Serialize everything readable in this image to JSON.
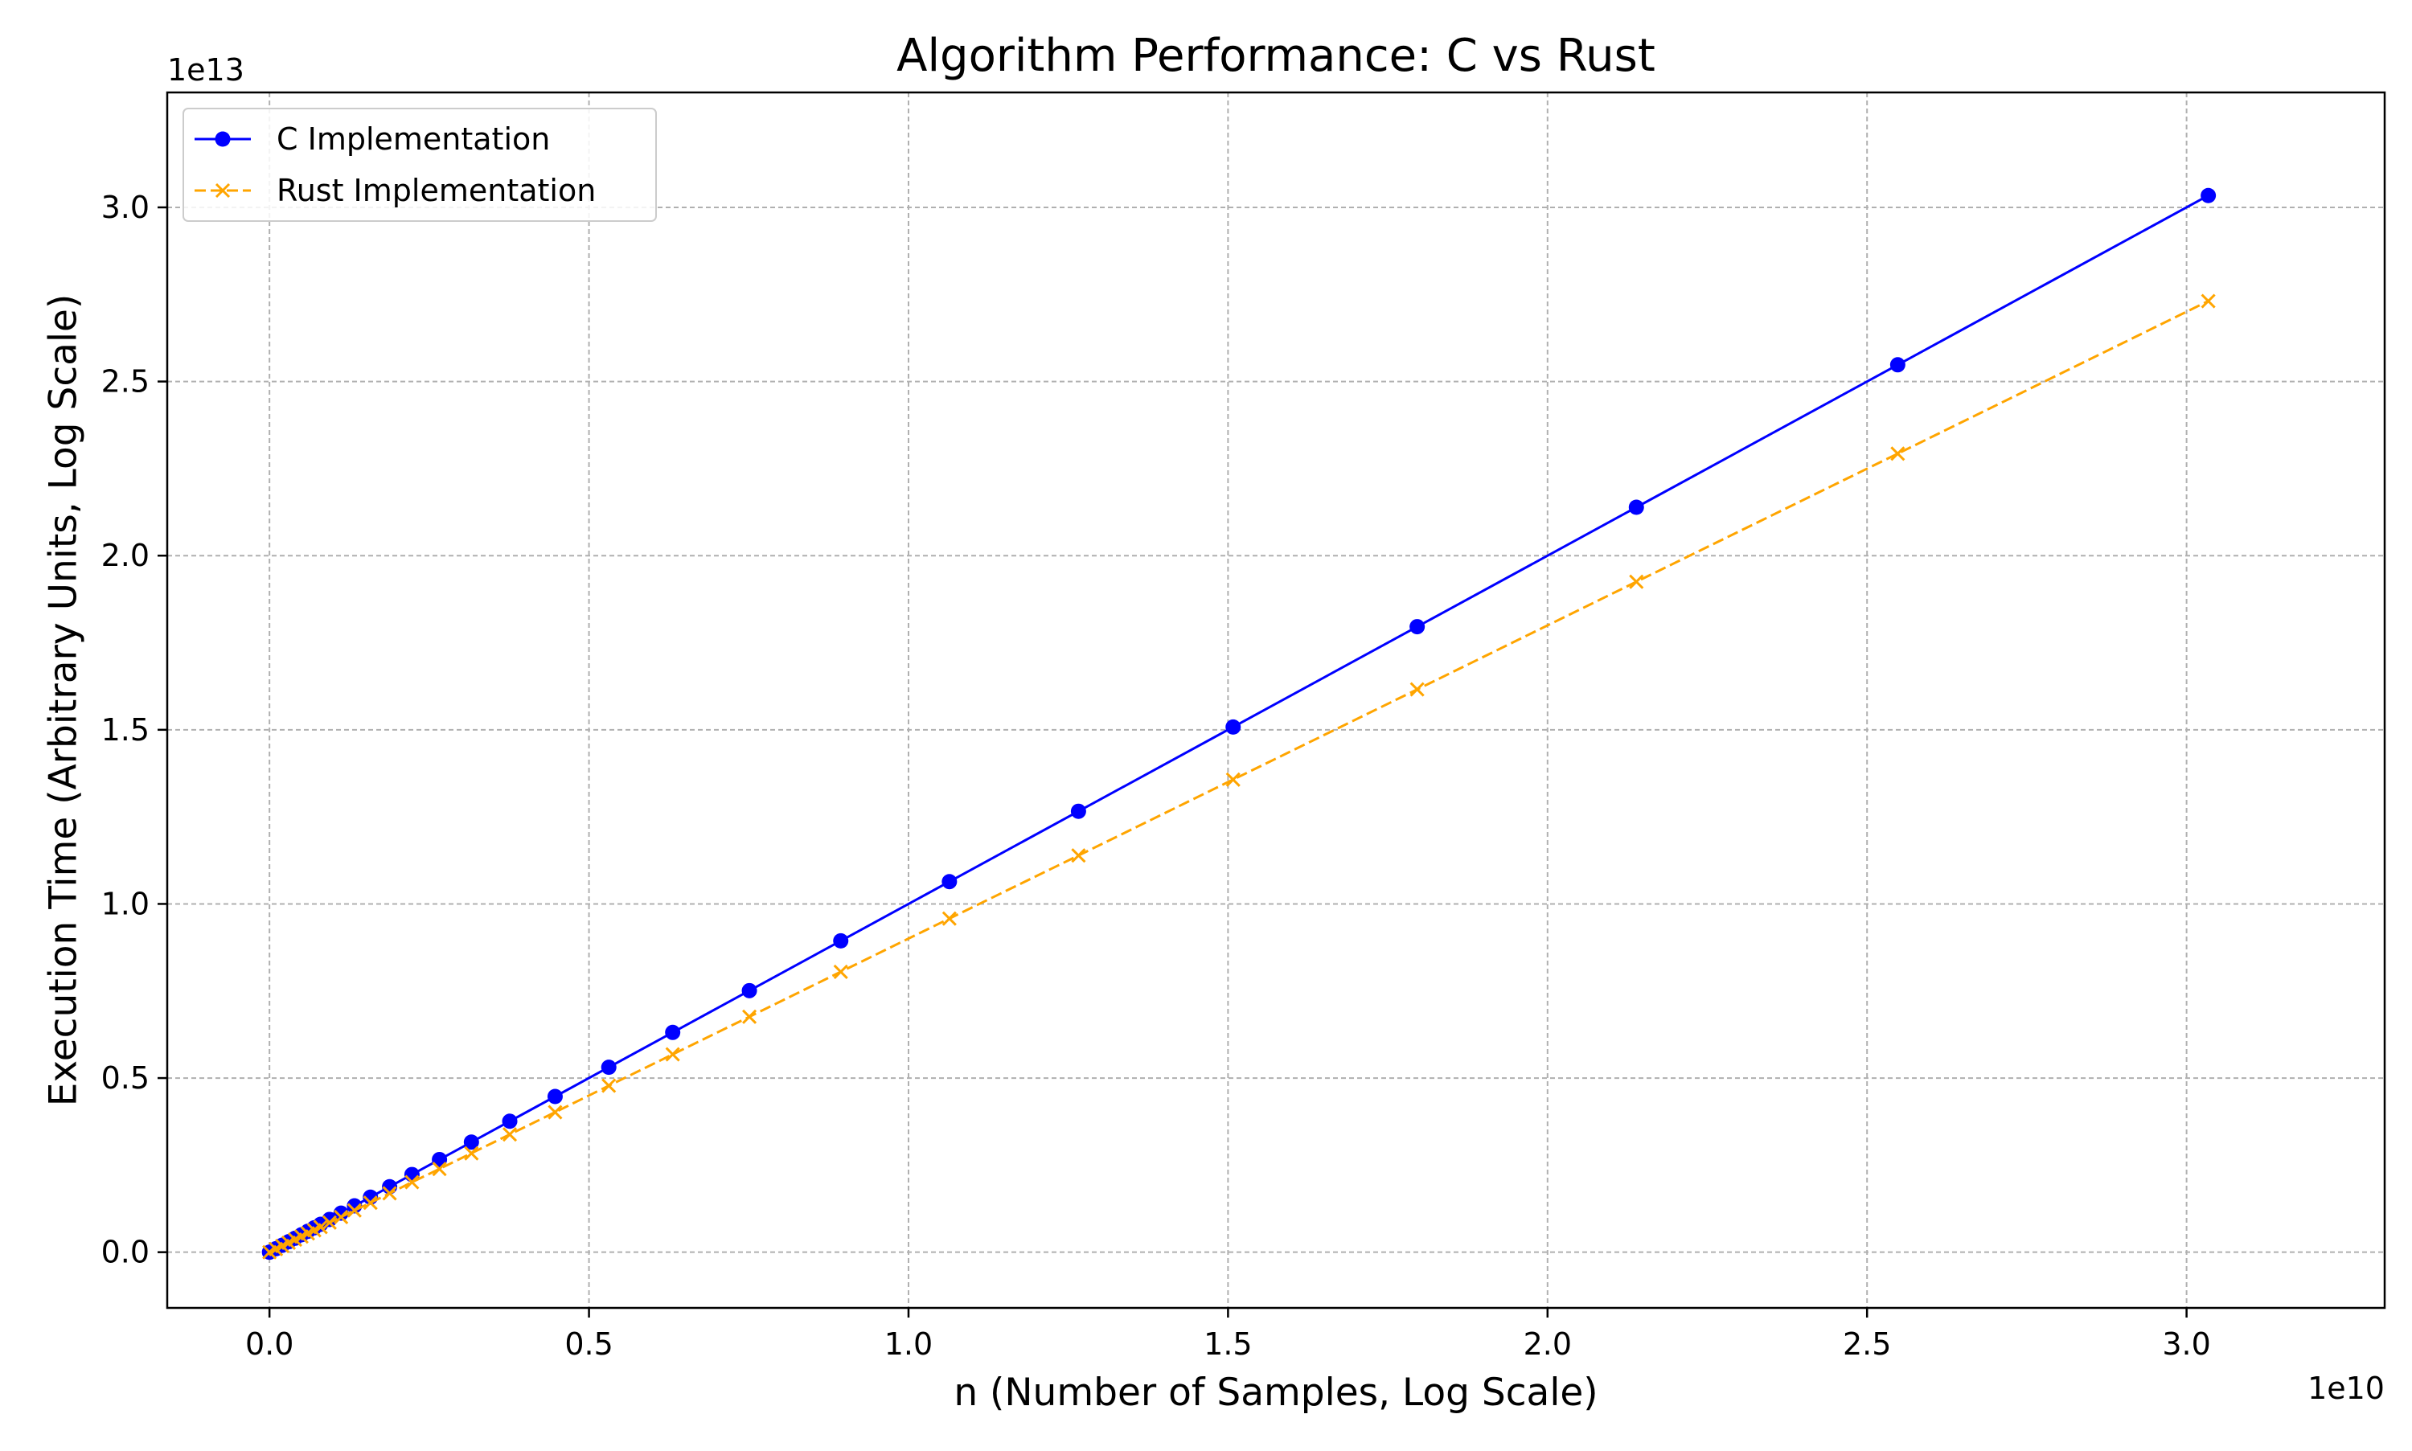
{
  "chart_data": {
    "type": "line",
    "title": "Algorithm Performance: C vs Rust",
    "xlabel": "n (Number of Samples, Log Scale)",
    "ylabel": "Execution Time (Arbitrary Units, Log Scale)",
    "x_offset_label": "1e10",
    "y_offset_label": "1e13",
    "xlim": [
      -0.16,
      3.31
    ],
    "ylim": [
      -0.16,
      3.33
    ],
    "x_ticks": [
      0.0,
      0.5,
      1.0,
      1.5,
      2.0,
      2.5,
      3.0
    ],
    "x_tick_labels": [
      "0.0",
      "0.5",
      "1.0",
      "1.5",
      "2.0",
      "2.5",
      "3.0"
    ],
    "y_ticks": [
      0.0,
      0.5,
      1.0,
      1.5,
      2.0,
      2.5,
      3.0
    ],
    "y_tick_labels": [
      "0.0",
      "0.5",
      "1.0",
      "1.5",
      "2.0",
      "2.5",
      "3.0"
    ],
    "grid": true,
    "legend_position": "top-left",
    "x": [
      0.0,
      0.01,
      0.02,
      0.03,
      0.04,
      0.05,
      0.06,
      0.07,
      0.08,
      0.094,
      0.112,
      0.133,
      0.158,
      0.188,
      0.223,
      0.266,
      0.316,
      0.376,
      0.447,
      0.531,
      0.631,
      0.751,
      0.894,
      1.064,
      1.266,
      1.508,
      1.796,
      2.139,
      2.548,
      3.034
    ],
    "series": [
      {
        "name": "C Implementation",
        "color": "#0000ff",
        "marker": "circle",
        "line_style": "solid",
        "values": [
          0.0,
          0.01,
          0.02,
          0.03,
          0.04,
          0.05,
          0.06,
          0.07,
          0.08,
          0.094,
          0.112,
          0.133,
          0.158,
          0.188,
          0.223,
          0.266,
          0.316,
          0.376,
          0.447,
          0.531,
          0.631,
          0.751,
          0.894,
          1.064,
          1.266,
          1.508,
          1.796,
          2.139,
          2.548,
          3.034
        ]
      },
      {
        "name": "Rust Implementation",
        "color": "#ffa500",
        "marker": "x",
        "line_style": "dashed",
        "values": [
          0.0,
          0.009,
          0.018,
          0.027,
          0.036,
          0.045,
          0.054,
          0.063,
          0.072,
          0.085,
          0.101,
          0.12,
          0.142,
          0.169,
          0.201,
          0.239,
          0.284,
          0.338,
          0.402,
          0.478,
          0.568,
          0.676,
          0.805,
          0.958,
          1.139,
          1.357,
          1.616,
          1.925,
          2.293,
          2.731
        ]
      }
    ]
  }
}
